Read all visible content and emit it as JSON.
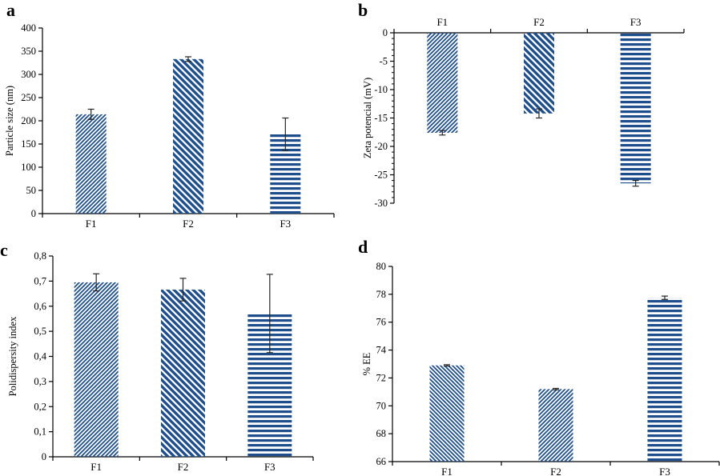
{
  "figure": {
    "background": "#ffffff",
    "colors": {
      "bar": "#1F4E8C",
      "error": "#262626",
      "axis": "#000000",
      "text": "#000000"
    }
  },
  "chart_data": [
    {
      "type": "bar",
      "panel_letter": "a",
      "title": "",
      "xlabel": "",
      "ylabel": "Particle size (nm)",
      "categories": [
        "F1",
        "F2",
        "F3"
      ],
      "values": [
        214,
        333,
        171
      ],
      "errors": [
        11,
        5,
        35
      ],
      "ylim": [
        0,
        400
      ],
      "ytick_values": [
        0,
        50,
        100,
        150,
        200,
        250,
        300,
        350,
        400
      ],
      "ytick_labels": [
        "0",
        "50",
        "100",
        "150",
        "200",
        "250",
        "300",
        "350",
        "400"
      ],
      "minor_tick_step": null,
      "category_axis": "bottom",
      "grid": false,
      "legend": "none",
      "hatches": [
        "diag-up-fine",
        "diag-down-thick",
        "horizontal"
      ]
    },
    {
      "type": "bar",
      "panel_letter": "b",
      "title": "",
      "xlabel": "",
      "ylabel": "Zeta potencial (mV)",
      "categories": [
        "F1",
        "F2",
        "F3"
      ],
      "values": [
        -17.6,
        -14.2,
        -26.5
      ],
      "errors": [
        0.4,
        0.8,
        0.5
      ],
      "ylim": [
        -30,
        0
      ],
      "ytick_values": [
        0,
        -5,
        -10,
        -15,
        -20,
        -25,
        -30
      ],
      "ytick_labels": [
        "0",
        "-5",
        "-10",
        "-15",
        "-20",
        "-25",
        "-30"
      ],
      "minor_tick_step": 1,
      "category_axis": "top",
      "grid": false,
      "legend": "none",
      "hatches": [
        "diag-up-fine",
        "diag-down-thick",
        "horizontal"
      ]
    },
    {
      "type": "bar",
      "panel_letter": "c",
      "title": "",
      "xlabel": "",
      "ylabel": "Polidispersity index",
      "categories": [
        "F1",
        "F2",
        "F3"
      ],
      "values": [
        0.695,
        0.666,
        0.571
      ],
      "errors": [
        0.034,
        0.045,
        0.156
      ],
      "ylim": [
        0,
        0.8
      ],
      "ytick_values": [
        0,
        0.1,
        0.2,
        0.3,
        0.4,
        0.5,
        0.6,
        0.7,
        0.8
      ],
      "ytick_labels": [
        "0",
        "0,1",
        "0,2",
        "0,3",
        "0,4",
        "0,5",
        "0,6",
        "0,7",
        "0,8"
      ],
      "minor_tick_step": null,
      "category_axis": "bottom",
      "grid": false,
      "legend": "none",
      "hatches": [
        "diag-up-fine",
        "diag-down-thick",
        "horizontal"
      ]
    },
    {
      "type": "bar",
      "panel_letter": "d",
      "title": "",
      "xlabel": "",
      "ylabel": "% EE",
      "categories": [
        "F1",
        "F2",
        "F3"
      ],
      "values": [
        72.9,
        71.2,
        77.75
      ],
      "errors": [
        0.05,
        0.05,
        0.12
      ],
      "ylim": [
        66,
        80
      ],
      "ytick_values": [
        66,
        68,
        70,
        72,
        74,
        76,
        78,
        80
      ],
      "ytick_labels": [
        "66",
        "68",
        "70",
        "72",
        "74",
        "76",
        "78",
        "80"
      ],
      "minor_tick_step": null,
      "category_axis": "bottom",
      "grid": false,
      "legend": "none",
      "hatches": [
        "diag-down-fine",
        "diag-up-fine",
        "horizontal"
      ]
    }
  ]
}
